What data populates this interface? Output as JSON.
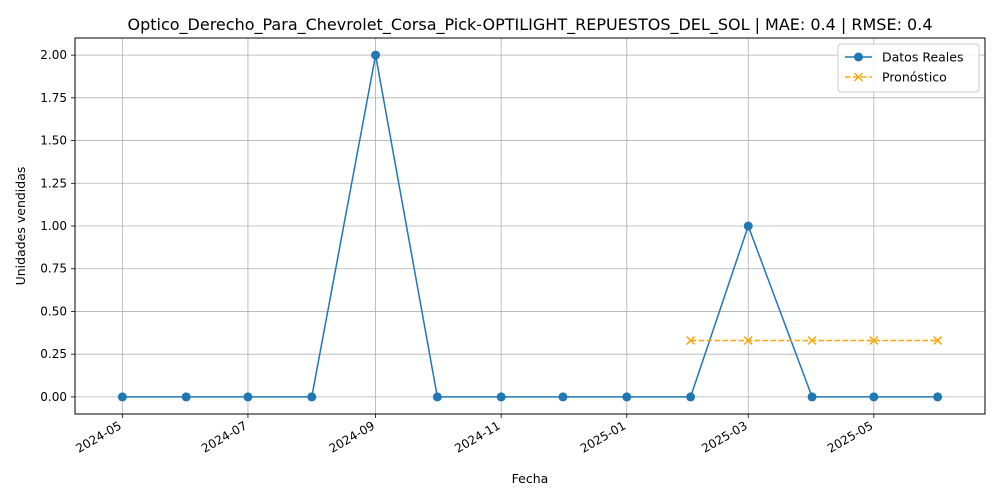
{
  "chart_data": {
    "type": "line",
    "title": "Optico_Derecho_Para_Chevrolet_Corsa_Pick-OPTILIGHT_REPUESTOS_DEL_SOL | MAE: 0.4 | RMSE: 0.4",
    "xlabel": "Fecha",
    "ylabel": "Unidades vendidas",
    "x_ticks": [
      "2024-05",
      "2024-07",
      "2024-09",
      "2024-11",
      "2025-01",
      "2025-03",
      "2025-05"
    ],
    "y_ticks": [
      "0.00",
      "0.25",
      "0.50",
      "0.75",
      "1.00",
      "1.25",
      "1.50",
      "1.75",
      "2.00"
    ],
    "ylim": [
      -0.1,
      2.1
    ],
    "grid": true,
    "legend_position": "top-right",
    "series": [
      {
        "name": "Datos Reales",
        "color": "#1f77b4",
        "style": "solid",
        "marker": "circle",
        "x": [
          "2024-05-01",
          "2024-06-01",
          "2024-07-01",
          "2024-08-01",
          "2024-09-01",
          "2024-10-01",
          "2024-11-01",
          "2024-12-01",
          "2025-01-01",
          "2025-02-01",
          "2025-03-01",
          "2025-04-01",
          "2025-05-01",
          "2025-06-01"
        ],
        "y": [
          0,
          0,
          0,
          0,
          2,
          0,
          0,
          0,
          0,
          0,
          1,
          0,
          0,
          0
        ]
      },
      {
        "name": "Pronóstico",
        "color": "#ffa500",
        "style": "dashed",
        "marker": "x",
        "x": [
          "2025-02-01",
          "2025-03-01",
          "2025-04-01",
          "2025-05-01",
          "2025-06-01"
        ],
        "y": [
          0.33,
          0.33,
          0.33,
          0.33,
          0.33
        ]
      }
    ]
  }
}
